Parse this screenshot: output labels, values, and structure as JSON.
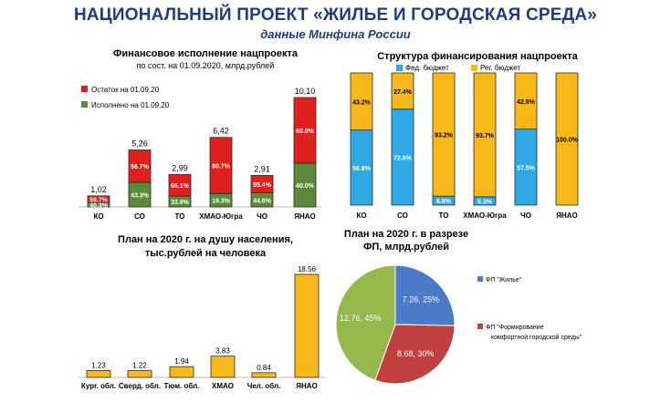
{
  "header": {
    "title": "НАЦИОНАЛЬНЫЙ ПРОЕКТ «ЖИЛЬЕ И ГОРОДСКАЯ СРЕДА»",
    "subtitle": "данные Минфина России"
  },
  "colors": {
    "red": "#e0201e",
    "green": "#5a8a3a",
    "blue": "#2ea9e6",
    "yellow": "#f7b81a",
    "bar_outline": "#2a2a2a",
    "pie_blue": "#4a7ac8",
    "pie_red": "#c0403f",
    "pie_green": "#95b84c"
  },
  "chart_data": [
    {
      "type": "bar",
      "stacked": true,
      "title": "Финансовое исполнение нацпроекта",
      "subtitle": "по сост. на 01.09.2020, млрд.рублей",
      "categories": [
        "КО",
        "СО",
        "ТО",
        "ХМАО-Югра",
        "ЧО",
        "ЯНАО"
      ],
      "totals": [
        "1,02",
        "5,26",
        "2,99",
        "6,42",
        "2,91",
        "10,10"
      ],
      "total_values": [
        1.02,
        5.26,
        2.99,
        6.42,
        2.91,
        10.1
      ],
      "series": [
        {
          "name": "Исполнено на 01.09.20",
          "percent_values": [
            40.3,
            43.3,
            33.9,
            19.3,
            44.6,
            40.0
          ],
          "labels": [
            "40.3%",
            "43.3%",
            "33.9%",
            "19.3%",
            "44.6%",
            "40.0%"
          ]
        },
        {
          "name": "Остаток на 01.09.20",
          "percent_values": [
            59.7,
            56.7,
            66.1,
            80.7,
            55.4,
            60.0
          ],
          "labels": [
            "59.7%",
            "56.7%",
            "66.1%",
            "80.7%",
            "55.4%",
            "60.0%"
          ]
        }
      ],
      "legend_position": "top-left",
      "ylim": [
        0,
        10.1
      ]
    },
    {
      "type": "bar",
      "stacked": true,
      "percent": true,
      "title": "Структура финансирования нацпроекта",
      "categories": [
        "КО",
        "СО",
        "ТО",
        "ХМАО-Югра",
        "ЧО",
        "ЯНАО"
      ],
      "series": [
        {
          "name": "Фед. бюджет",
          "values": [
            56.8,
            72.6,
            6.8,
            6.3,
            57.5,
            0
          ],
          "labels": [
            "56.8%",
            "72.6%",
            "6.8%",
            "6.3%",
            "57.5%",
            ""
          ]
        },
        {
          "name": "Рег. бюджет",
          "values": [
            43.2,
            27.4,
            93.2,
            93.7,
            42.5,
            100.0
          ],
          "labels": [
            "43.2%",
            "27.4%",
            "93.2%",
            "93.7%",
            "42.5%",
            "100.0%"
          ]
        }
      ],
      "legend_position": "top",
      "ylim": [
        0,
        100
      ]
    },
    {
      "type": "bar",
      "title": "План на 2020 г. на душу населения, тыс.рублей на человека",
      "title_lines": [
        "План на 2020 г. на душу населения,",
        "тыс.рублей на человека"
      ],
      "categories": [
        "Кург. обл.",
        "Сверд. обл.",
        "Тюм. обл.",
        "ХМАО",
        "Чел. обл.",
        "ЯНАО"
      ],
      "values": [
        1.23,
        1.22,
        1.94,
        3.83,
        0.84,
        18.56
      ],
      "labels": [
        "1.23",
        "1.22",
        "1.94",
        "3.83",
        "0.84",
        "18.56"
      ],
      "ylim": [
        0,
        18.56
      ]
    },
    {
      "type": "pie",
      "title": "План на 2020 г. в разрезе ФП, млрд.рублей",
      "title_lines": [
        "План на 2020 г. в разрезе",
        "ФП, млрд.рублей"
      ],
      "slices": [
        {
          "name": "ФП \"Жилье\"",
          "value": 7.26,
          "percent": 25,
          "label": "7.26, 25%"
        },
        {
          "name": "ФП \"Формирование комфортной городской среды\"",
          "value": 8.68,
          "percent": 30,
          "label": "8.68, 30%"
        },
        {
          "name": "",
          "value": 12.76,
          "percent": 45,
          "label": "12.76, 45%"
        }
      ],
      "legend": [
        {
          "text_lines": [
            "ФП \"Жилье\""
          ]
        },
        {
          "text_lines": [
            "ФП \"Формирование",
            "комфортной городской среды\""
          ]
        }
      ],
      "legend_position": "right"
    }
  ]
}
